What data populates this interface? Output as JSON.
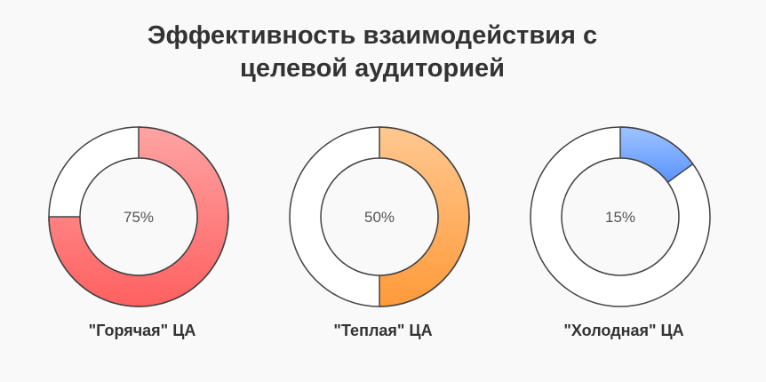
{
  "title": {
    "line1": "Эффективность взаимодействия с",
    "line2": "целевой аудиторией"
  },
  "chart_data": {
    "type": "donut",
    "title": "Эффективность взаимодействия с целевой аудиторией",
    "items": [
      {
        "label": "\"Горячая\" ЦА",
        "value": 75,
        "value_label": "75%",
        "color_light": "#ffa3a3",
        "color_dark": "#ff6060"
      },
      {
        "label": "\"Теплая\" ЦА",
        "value": 50,
        "value_label": "50%",
        "color_light": "#ffc890",
        "color_dark": "#ff9a3a"
      },
      {
        "label": "\"Холодная\" ЦА",
        "value": 15,
        "value_label": "15%",
        "color_light": "#9ec4ff",
        "color_dark": "#5a93ff"
      }
    ],
    "max": 100
  },
  "colors": {
    "background": "#f9f9f9",
    "ring_empty": "#ffffff",
    "stroke": "#444444",
    "text": "#333333"
  }
}
